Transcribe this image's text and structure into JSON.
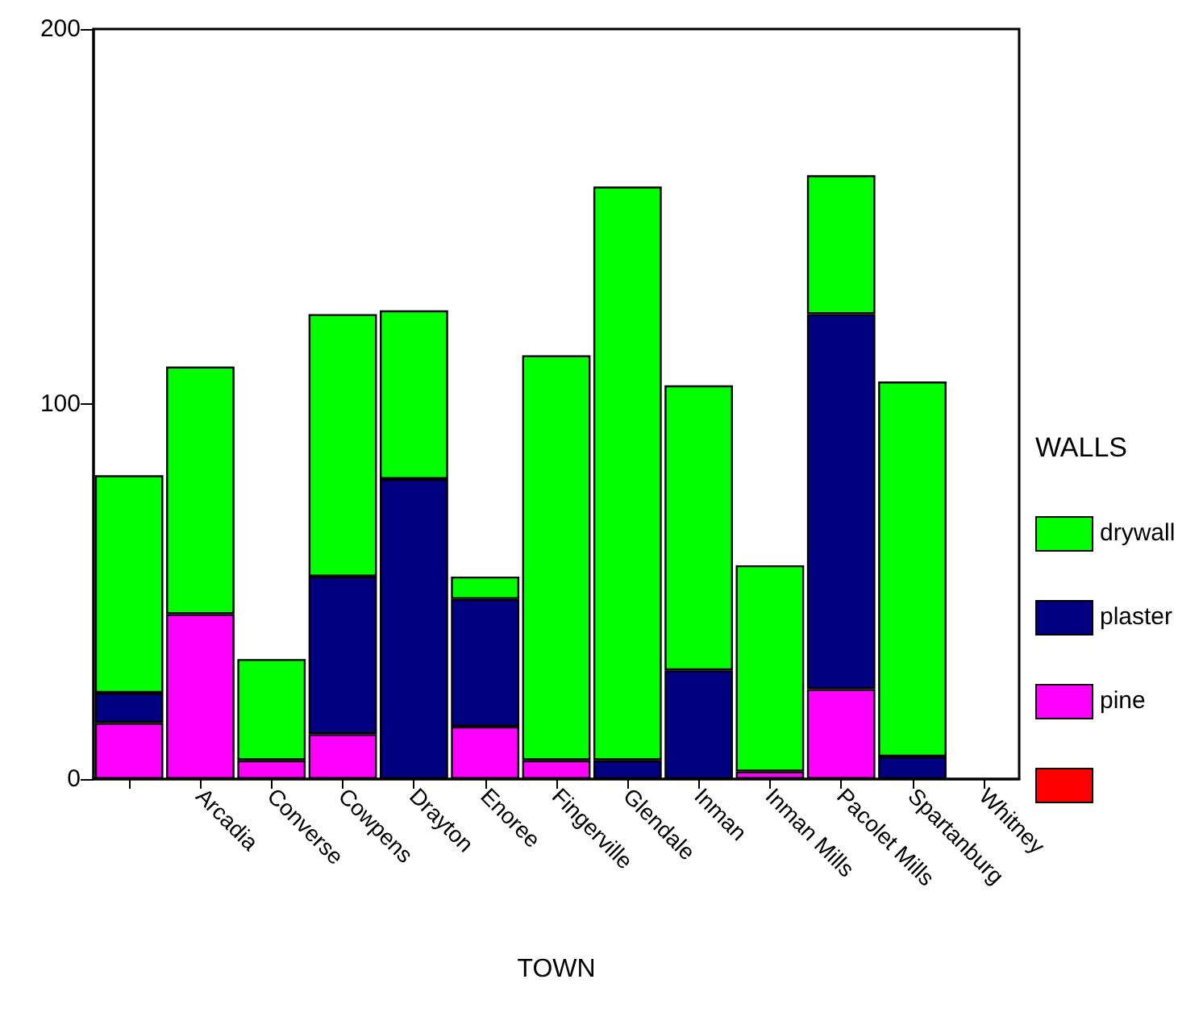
{
  "chart_data": {
    "type": "bar",
    "stacked": true,
    "categories": [
      null,
      "Arcadia",
      "Converse",
      "Cowpens",
      "Drayton",
      "Enoree",
      "Fingerville",
      "Glendale",
      "Inman",
      "Inman Mills",
      "Pacolet Mills",
      "Spartanburg",
      "Whitney"
    ],
    "series": [
      {
        "color": "#ff0000",
        "values": [
          null,
          null,
          null,
          null,
          null,
          null,
          null,
          null,
          null,
          null,
          null,
          null,
          null
        ]
      },
      {
        "name": "pine",
        "color": "#ff00ff",
        "values": [
          15,
          44,
          5,
          12,
          0,
          14,
          5,
          0,
          0,
          2,
          24,
          0,
          null
        ]
      },
      {
        "name": "plaster",
        "color": "#000080",
        "values": [
          8,
          0,
          0,
          42,
          80,
          34,
          0,
          5,
          29,
          0,
          100,
          6,
          null
        ]
      },
      {
        "name": "drywall",
        "color": "#00ff00",
        "values": [
          58,
          66,
          27,
          70,
          45,
          6,
          108,
          153,
          76,
          55,
          37,
          100,
          null
        ]
      }
    ],
    "xlabel": "TOWN",
    "legend_title": "WALLS",
    "legend": "right",
    "ylim": [
      0,
      200
    ],
    "yticks": [
      0,
      100,
      200
    ],
    "grid": false
  }
}
